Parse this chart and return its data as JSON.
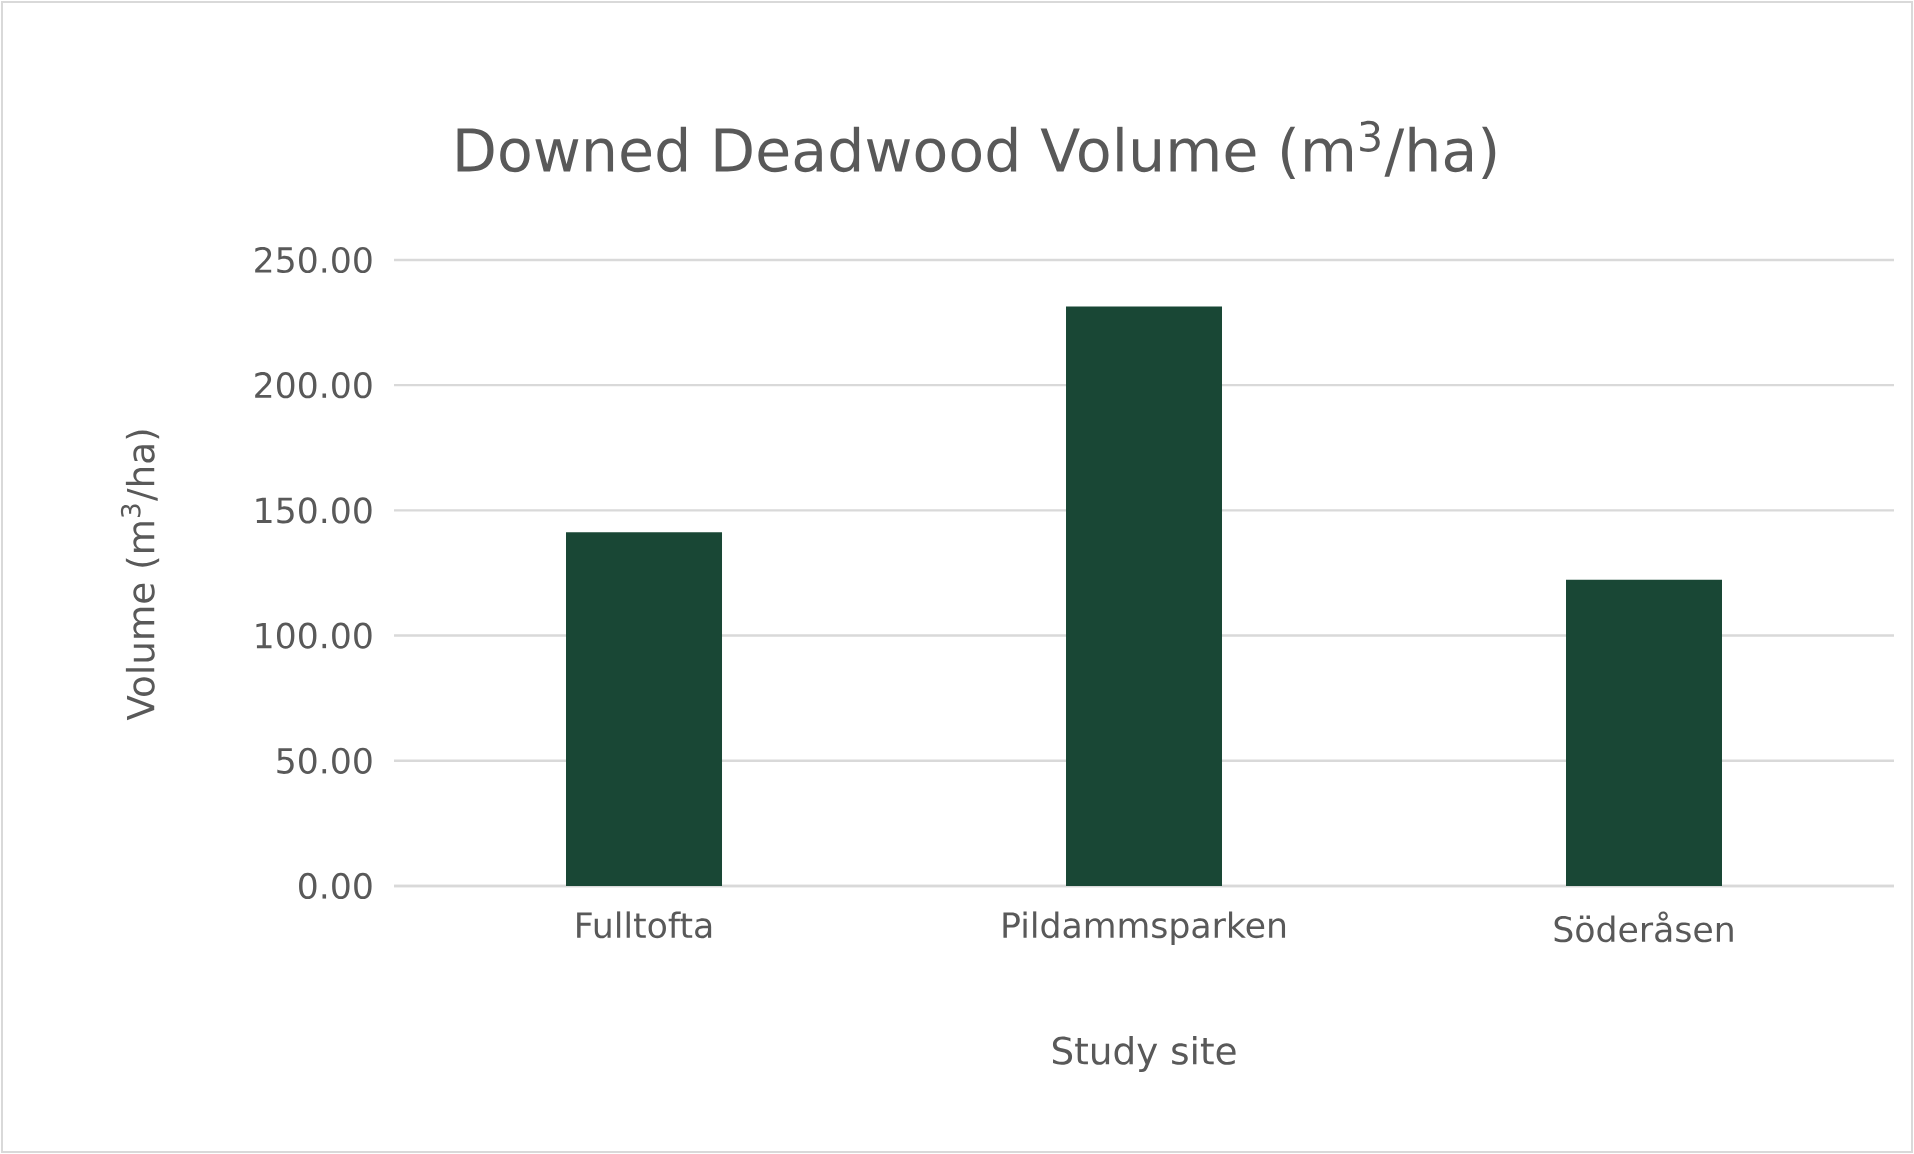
{
  "chart_data": {
    "type": "bar",
    "title": "Downed Deadwood Volume (m$^{3}$/ha)",
    "xlabel": "Study site",
    "ylabel": "Volume (m$^{3}$/ha)",
    "categories": [
      "Fulltofta",
      "Pildammsparken",
      "Söderåsen"
    ],
    "values": [
      141.3,
      231.4,
      122.3
    ],
    "color": "#194735",
    "ylim": [
      0,
      250
    ],
    "yticks": [
      {
        "value": 0,
        "label": "0.00"
      },
      {
        "value": 50,
        "label": "50.00"
      },
      {
        "value": 100,
        "label": "100.00"
      },
      {
        "value": 150,
        "label": "150.00"
      },
      {
        "value": 200,
        "label": "200.00"
      },
      {
        "value": 250,
        "label": "250.00"
      }
    ],
    "grid": "y"
  }
}
